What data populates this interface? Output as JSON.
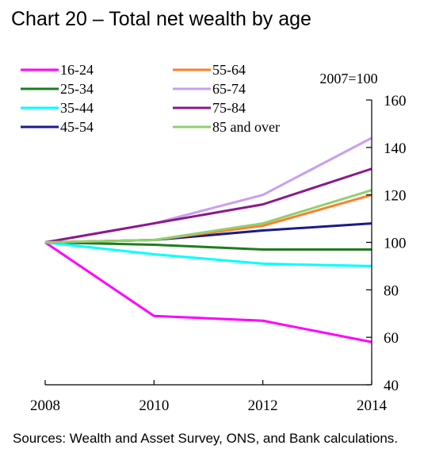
{
  "title": "Chart 20 – Total net wealth by age",
  "source": "Sources: Wealth and Asset Survey, ONS, and Bank calculations.",
  "chart_data": {
    "type": "line",
    "x": [
      2008,
      2010,
      2012,
      2014
    ],
    "x_ticks": [
      "2008",
      "2010",
      "2012",
      "2014"
    ],
    "ylim": [
      40,
      160
    ],
    "y_ticks": [
      "40",
      "60",
      "80",
      "100",
      "120",
      "140",
      "160"
    ],
    "y_axis_side": "right",
    "unit_label": "2007=100",
    "legend_placement": "top-left",
    "series": [
      {
        "name": "16-24",
        "color": "#ff00ff",
        "values": [
          100,
          69,
          67,
          58
        ]
      },
      {
        "name": "25-34",
        "color": "#1e7d1e",
        "values": [
          100,
          99,
          97,
          97
        ]
      },
      {
        "name": "35-44",
        "color": "#00ffff",
        "values": [
          100,
          95,
          91,
          90
        ]
      },
      {
        "name": "45-54",
        "color": "#1a1a8c",
        "values": [
          100,
          101,
          105,
          108
        ]
      },
      {
        "name": "55-64",
        "color": "#ff7f27",
        "values": [
          100,
          101,
          107,
          120
        ]
      },
      {
        "name": "65-74",
        "color": "#c8a0f0",
        "values": [
          100,
          108,
          120,
          144
        ]
      },
      {
        "name": "75-84",
        "color": "#8b1a8b",
        "values": [
          100,
          108,
          116,
          131
        ]
      },
      {
        "name": "85 and over",
        "color": "#90d070",
        "values": [
          100,
          101,
          108,
          122
        ]
      }
    ]
  }
}
